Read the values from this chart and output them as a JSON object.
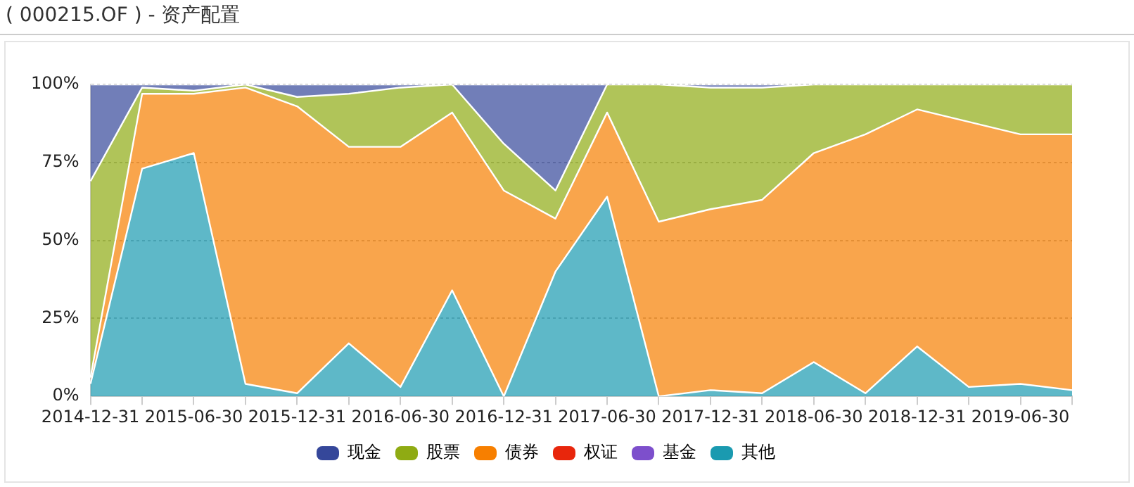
{
  "chart_data": {
    "type": "area",
    "title": "( 000215.OF ) - 资产配置",
    "stacked": true,
    "grid": "y",
    "legend": "bottom",
    "marker": "none",
    "categories": [
      "2014-12-31",
      null,
      "2015-06-30",
      null,
      "2015-12-31",
      null,
      "2016-06-30",
      null,
      "2016-12-31",
      null,
      "2017-06-30",
      null,
      "2017-12-31",
      null,
      "2018-06-30",
      null,
      "2018-12-31",
      null,
      "2019-06-30",
      null
    ],
    "ylim": [
      0,
      100
    ],
    "yticks": [
      {
        "value": 0,
        "label": "0%"
      },
      {
        "value": 25,
        "label": "25%"
      },
      {
        "value": 50,
        "label": "50%"
      },
      {
        "value": 75,
        "label": "75%"
      },
      {
        "value": 100,
        "label": "100%"
      }
    ],
    "series": [
      {
        "name": "其他",
        "color": "#1a9ab0",
        "values": [
          4,
          73,
          78,
          4,
          1,
          17,
          3,
          34,
          0,
          40,
          64,
          0,
          2,
          1,
          11,
          1,
          16,
          3,
          4,
          2
        ]
      },
      {
        "name": "基金",
        "color": "#7d4fcc",
        "values": [
          null,
          null,
          null,
          null,
          null,
          null,
          null,
          null,
          null,
          null,
          null,
          null,
          null,
          null,
          null,
          null,
          null,
          null,
          null,
          null
        ]
      },
      {
        "name": "权证",
        "color": "#e8260c",
        "values": [
          null,
          null,
          null,
          null,
          null,
          null,
          null,
          null,
          null,
          null,
          null,
          null,
          null,
          null,
          null,
          null,
          null,
          null,
          null,
          null
        ]
      },
      {
        "name": "债券",
        "color": "#f77f00",
        "values": [
          2,
          24,
          19,
          95,
          92,
          63,
          77,
          57,
          66,
          17,
          27,
          56,
          58,
          62,
          67,
          83,
          76,
          85,
          80,
          82
        ]
      },
      {
        "name": "股票",
        "color": "#8fab13",
        "values": [
          63,
          2,
          1,
          1,
          3,
          17,
          19,
          9,
          15,
          9,
          9,
          44,
          39,
          36,
          22,
          16,
          8,
          12,
          16,
          16
        ]
      },
      {
        "name": "现金",
        "color": "#35479a",
        "values": [
          31,
          1,
          2,
          0,
          4,
          3,
          1,
          0,
          19,
          34,
          0,
          0,
          1,
          1,
          0,
          0,
          0,
          0,
          0,
          0
        ]
      }
    ]
  }
}
